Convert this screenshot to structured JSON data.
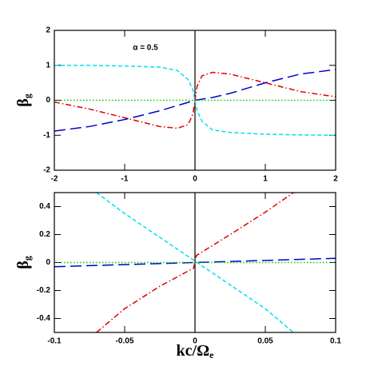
{
  "chart_data": [
    {
      "type": "line",
      "annotation": "α = 0.5",
      "ylabel": "β",
      "ylabel_subscript": "g",
      "xlim": [
        -2,
        2
      ],
      "ylim": [
        -2,
        2
      ],
      "xticks": [
        -2,
        -1,
        0,
        1,
        2
      ],
      "yticks": [
        -2,
        -1,
        0,
        1,
        2
      ],
      "vline": 0,
      "series": [
        {
          "color": "#00e0ee",
          "dash": "dashed",
          "x": [
            -2,
            -1.5,
            -1,
            -0.5,
            -0.25,
            -0.1,
            -0.03,
            0,
            0.03,
            0.1,
            0.25,
            0.5,
            1,
            1.5,
            2
          ],
          "values": [
            1,
            1,
            0.98,
            0.95,
            0.85,
            0.6,
            0.3,
            0,
            -0.3,
            -0.6,
            -0.85,
            -0.92,
            -0.97,
            -0.99,
            -1
          ]
        },
        {
          "color": "#e00000",
          "dash": "dashdot",
          "x": [
            -2,
            -1.5,
            -1,
            -0.5,
            -0.25,
            -0.1,
            -0.03,
            0,
            0.03,
            0.1,
            0.25,
            0.5,
            1,
            1.5,
            2
          ],
          "values": [
            -0.05,
            -0.25,
            -0.5,
            -0.75,
            -0.8,
            -0.7,
            -0.4,
            0,
            0.4,
            0.7,
            0.8,
            0.75,
            0.5,
            0.25,
            0.1
          ]
        },
        {
          "color": "#0000cc",
          "dash": "longdash",
          "x": [
            -2,
            -1.5,
            -1,
            -0.5,
            -0.25,
            0,
            0.25,
            0.5,
            1,
            1.5,
            2
          ],
          "values": [
            -0.88,
            -0.75,
            -0.55,
            -0.3,
            -0.15,
            0,
            0.08,
            0.2,
            0.5,
            0.75,
            0.88
          ]
        },
        {
          "color": "#00cc00",
          "dash": "dotted",
          "x": [
            -2,
            2
          ],
          "values": [
            0,
            0
          ]
        }
      ]
    },
    {
      "type": "line",
      "ylabel": "β",
      "ylabel_subscript": "g",
      "xlabel": "kc/Ω",
      "xlabel_subscript": "e",
      "xlim": [
        -0.1,
        0.1
      ],
      "ylim": [
        -0.5,
        0.5
      ],
      "xticks": [
        -0.1,
        -0.05,
        0,
        0.05,
        0.1
      ],
      "yticks": [
        -0.4,
        -0.2,
        0,
        0.2,
        0.4
      ],
      "vline": 0,
      "series": [
        {
          "color": "#00e0ee",
          "dash": "dashed",
          "x": [
            -0.07,
            -0.05,
            -0.025,
            0,
            0.025,
            0.05,
            0.07
          ],
          "values": [
            0.5,
            0.35,
            0.18,
            0.01,
            -0.16,
            -0.33,
            -0.5
          ]
        },
        {
          "color": "#e00000",
          "dash": "dashdot",
          "x": [
            -0.07,
            -0.05,
            -0.025,
            -0.001,
            0.001,
            0.025,
            0.05,
            0.07
          ],
          "values": [
            -0.5,
            -0.33,
            -0.17,
            -0.04,
            0.05,
            0.2,
            0.36,
            0.5
          ]
        },
        {
          "color": "#0000cc",
          "dash": "longdash",
          "x": [
            -0.1,
            -0.05,
            0,
            0.05,
            0.1
          ],
          "values": [
            -0.03,
            -0.015,
            0,
            0.015,
            0.03
          ]
        },
        {
          "color": "#00cc00",
          "dash": "dotted",
          "x": [
            -0.1,
            0.1
          ],
          "values": [
            0,
            0
          ]
        }
      ]
    }
  ]
}
